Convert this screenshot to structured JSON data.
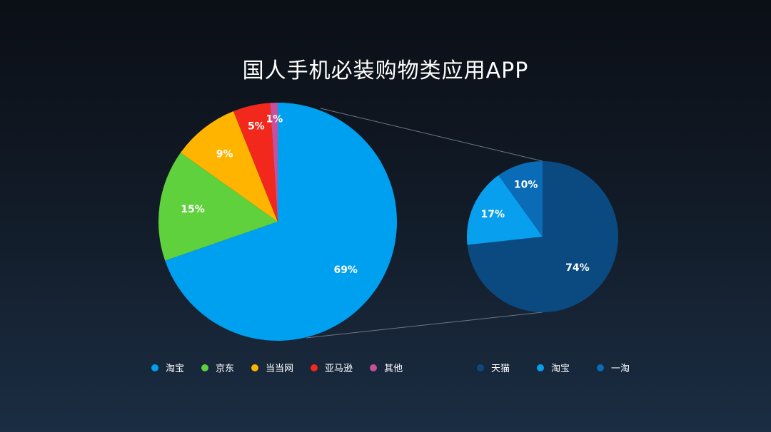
{
  "chart_data": [
    {
      "type": "pie",
      "title": "国人手机必装购物类应用APP",
      "categories": [
        "淘宝",
        "京东",
        "当当网",
        "亚马逊",
        "其他"
      ],
      "values": [
        69,
        15,
        9,
        5,
        1
      ],
      "labels": [
        "69%",
        "15%",
        "9%",
        "5%",
        "1%"
      ],
      "colors": [
        "#00a0f0",
        "#5fd13c",
        "#ffb400",
        "#f2281d",
        "#c6509a"
      ],
      "legend": "bottom"
    },
    {
      "type": "pie",
      "categories": [
        "天猫",
        "淘宝",
        "一淘"
      ],
      "values": [
        74,
        17,
        10
      ],
      "labels": [
        "74%",
        "17%",
        "10%"
      ],
      "colors": [
        "#0a4a80",
        "#08a0ee",
        "#0a6bb6"
      ],
      "legend": "bottom"
    }
  ]
}
